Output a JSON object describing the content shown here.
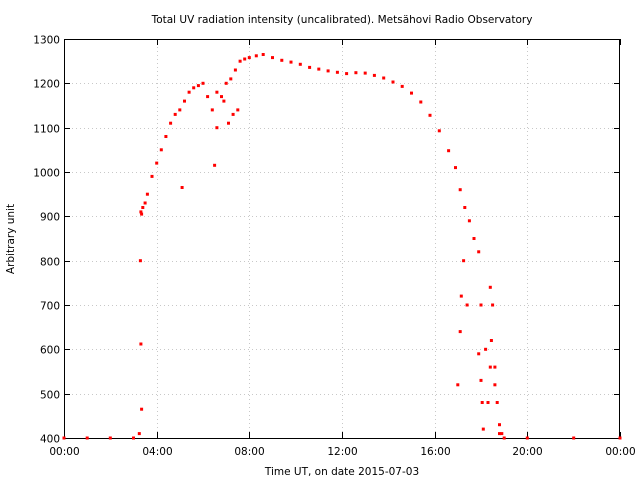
{
  "chart_data": {
    "type": "scatter",
    "title": "Total UV radiation intensity (uncalibrated). Metsähovi Radio Observatory",
    "xlabel": "Time UT, on date 2015-07-03",
    "ylabel": "Arbitrary unit",
    "xlim": [
      0,
      24
    ],
    "ylim": [
      400,
      1300
    ],
    "x_ticks": [
      {
        "value": 0,
        "label": "00:00"
      },
      {
        "value": 4,
        "label": "04:00"
      },
      {
        "value": 8,
        "label": "08:00"
      },
      {
        "value": 12,
        "label": "12:00"
      },
      {
        "value": 16,
        "label": "16:00"
      },
      {
        "value": 20,
        "label": "20:00"
      },
      {
        "value": 24,
        "label": "00:00"
      }
    ],
    "y_ticks": [
      400,
      500,
      600,
      700,
      800,
      900,
      1000,
      1100,
      1200,
      1300
    ],
    "grid": true,
    "legend": "none",
    "marker_color": "#ff0000",
    "series": [
      {
        "x": [
          0.0,
          1.0,
          2.0,
          3.0,
          3.25,
          3.32,
          3.35,
          3.4,
          3.5,
          3.6,
          3.8,
          4.0,
          4.2,
          4.4,
          4.6,
          4.8,
          5.0,
          5.2,
          5.4,
          5.6,
          5.8,
          6.0,
          6.2,
          6.4,
          6.6,
          6.8,
          7.0,
          7.2,
          7.4,
          7.6,
          7.8,
          8.0,
          8.3,
          8.6,
          9.0,
          9.4,
          9.8,
          10.2,
          10.6,
          11.0,
          11.4,
          11.8,
          12.2,
          12.6,
          13.0,
          13.4,
          13.8,
          14.2,
          14.6,
          15.0,
          15.4,
          15.8,
          16.2,
          16.6,
          16.9,
          17.1,
          17.3,
          17.5,
          17.7,
          17.9,
          18.0,
          18.2,
          18.4,
          18.6,
          18.8,
          19.0,
          20.0,
          22.0,
          24.0
        ],
        "y": [
          400,
          400,
          400,
          400,
          410,
          910,
          905,
          920,
          930,
          950,
          990,
          1020,
          1050,
          1080,
          1110,
          1130,
          1140,
          1160,
          1180,
          1190,
          1195,
          1200,
          1170,
          1140,
          1180,
          1170,
          1200,
          1210,
          1230,
          1250,
          1255,
          1258,
          1262,
          1265,
          1258,
          1252,
          1248,
          1243,
          1236,
          1232,
          1228,
          1225,
          1222,
          1224,
          1223,
          1218,
          1212,
          1203,
          1193,
          1178,
          1158,
          1128,
          1093,
          1048,
          1010,
          960,
          920,
          890,
          850,
          820,
          700,
          600,
          740,
          560,
          410,
          400,
          400,
          400,
          400
        ]
      },
      {
        "x": [
          3.3,
          3.32,
          3.35,
          5.1,
          6.5,
          6.6,
          6.9,
          7.1,
          7.3,
          7.5,
          17.0,
          17.1,
          17.15,
          17.25,
          17.4,
          17.9,
          18.0,
          18.05,
          18.1,
          18.3,
          18.4,
          18.45,
          18.5,
          18.6,
          18.7,
          18.8,
          18.9
        ],
        "y": [
          800,
          612,
          465,
          965,
          1015,
          1100,
          1160,
          1110,
          1130,
          1140,
          520,
          640,
          720,
          800,
          700,
          590,
          530,
          480,
          420,
          480,
          560,
          620,
          700,
          520,
          480,
          430,
          410
        ]
      }
    ]
  }
}
